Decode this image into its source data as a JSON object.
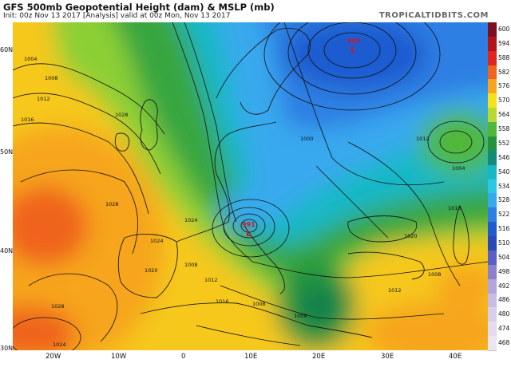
{
  "header": {
    "title": "GFS 500mb Geopotential Height (dam) & MSLP (mb)",
    "subtitle": "Init: 00z Nov 13 2017   [Analysis]   valid at 00z Mon, Nov 13 2017",
    "brand": "TROPICALTIDBITS.COM"
  },
  "colorbar": {
    "labels": [
      "600",
      "594",
      "588",
      "582",
      "576",
      "570",
      "564",
      "558",
      "552",
      "546",
      "540",
      "534",
      "528",
      "522",
      "516",
      "510",
      "504",
      "498",
      "492",
      "486",
      "480",
      "474",
      "468"
    ],
    "colors": [
      "#7a1020",
      "#b3131b",
      "#e0251f",
      "#f0641c",
      "#f6a51e",
      "#f6e11e",
      "#b7d930",
      "#4fb83a",
      "#23933f",
      "#138a7a",
      "#17b8c6",
      "#2bc7e6",
      "#38a9ee",
      "#2d7fe3",
      "#1e5bd0",
      "#2a49b8",
      "#5a5fc4",
      "#8a80d0",
      "#b3a6dd",
      "#c9bde5",
      "#d9cfea",
      "#e4dbef",
      "#ece6f3"
    ]
  },
  "map": {
    "lat_labels": [
      "60N",
      "50N",
      "40N",
      "30N"
    ],
    "lon_labels": [
      "20W",
      "10W",
      "0",
      "10E",
      "20E",
      "30E",
      "40E"
    ],
    "lows": [
      {
        "letter": "L",
        "value": "992",
        "color": "#d0142a"
      },
      {
        "letter": "L",
        "value": "991",
        "color": "#d0142a"
      }
    ],
    "isobar_labels": [
      "1004",
      "1008",
      "1012",
      "1016",
      "1028",
      "1028",
      "1024",
      "1024",
      "1020",
      "1028",
      "1024",
      "1000",
      "1008",
      "1012",
      "1016",
      "1008",
      "1004",
      "1012",
      "1016",
      "1020",
      "1008",
      "1016",
      "1012",
      "1008"
    ]
  }
}
